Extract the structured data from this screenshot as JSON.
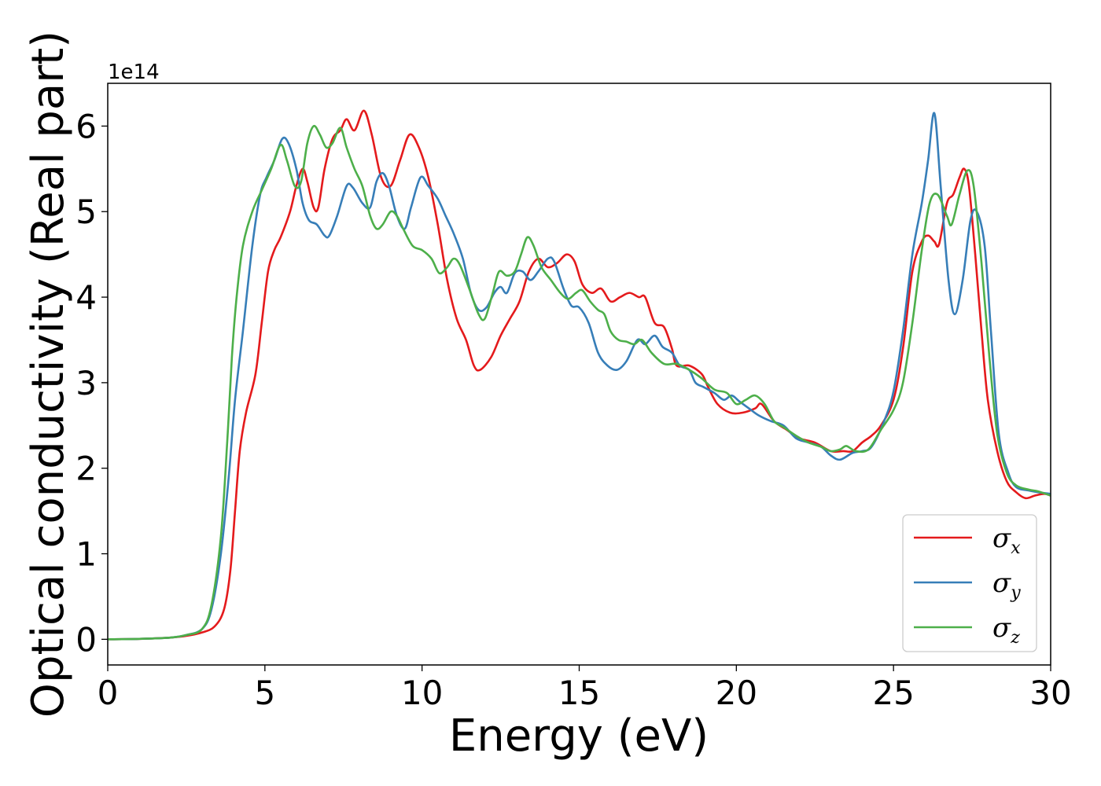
{
  "chart_data": {
    "type": "line",
    "xlabel": "Energy (eV)",
    "ylabel": "Optical conductivity (Real part)",
    "y_offset_label": "1e14",
    "y_scale_factor": 100000000000000.0,
    "xlim": [
      0,
      30
    ],
    "ylim": [
      -0.3,
      6.5
    ],
    "x_ticks": [
      0,
      5,
      10,
      15,
      20,
      25,
      30
    ],
    "y_ticks": [
      0,
      1,
      2,
      3,
      4,
      5,
      6
    ],
    "grid": false,
    "legend_position": "bottom-right",
    "series": [
      {
        "name": "σx",
        "symbol": "σ",
        "subscript": "x",
        "color": "#e41a1c",
        "points": [
          [
            0,
            0
          ],
          [
            1,
            0.005
          ],
          [
            2,
            0.02
          ],
          [
            2.5,
            0.04
          ],
          [
            3,
            0.08
          ],
          [
            3.4,
            0.15
          ],
          [
            3.7,
            0.35
          ],
          [
            3.9,
            0.8
          ],
          [
            4.05,
            1.5
          ],
          [
            4.2,
            2.2
          ],
          [
            4.4,
            2.65
          ],
          [
            4.7,
            3.1
          ],
          [
            4.9,
            3.7
          ],
          [
            5.1,
            4.3
          ],
          [
            5.3,
            4.55
          ],
          [
            5.5,
            4.7
          ],
          [
            5.8,
            5.0
          ],
          [
            6.0,
            5.3
          ],
          [
            6.2,
            5.5
          ],
          [
            6.35,
            5.35
          ],
          [
            6.55,
            5.05
          ],
          [
            6.7,
            5.05
          ],
          [
            6.9,
            5.5
          ],
          [
            7.15,
            5.85
          ],
          [
            7.4,
            5.95
          ],
          [
            7.6,
            6.08
          ],
          [
            7.85,
            5.95
          ],
          [
            8.15,
            6.18
          ],
          [
            8.4,
            5.9
          ],
          [
            8.7,
            5.4
          ],
          [
            9.0,
            5.3
          ],
          [
            9.3,
            5.6
          ],
          [
            9.6,
            5.9
          ],
          [
            9.9,
            5.75
          ],
          [
            10.2,
            5.4
          ],
          [
            10.5,
            4.85
          ],
          [
            10.8,
            4.2
          ],
          [
            11.1,
            3.75
          ],
          [
            11.4,
            3.5
          ],
          [
            11.65,
            3.2
          ],
          [
            11.85,
            3.15
          ],
          [
            12.2,
            3.3
          ],
          [
            12.5,
            3.55
          ],
          [
            12.8,
            3.75
          ],
          [
            13.1,
            3.95
          ],
          [
            13.4,
            4.3
          ],
          [
            13.7,
            4.45
          ],
          [
            14.0,
            4.35
          ],
          [
            14.3,
            4.4
          ],
          [
            14.6,
            4.5
          ],
          [
            14.85,
            4.42
          ],
          [
            15.1,
            4.15
          ],
          [
            15.4,
            4.05
          ],
          [
            15.7,
            4.1
          ],
          [
            16.0,
            3.95
          ],
          [
            16.3,
            4.0
          ],
          [
            16.6,
            4.05
          ],
          [
            16.9,
            4.0
          ],
          [
            17.1,
            4.0
          ],
          [
            17.4,
            3.7
          ],
          [
            17.7,
            3.65
          ],
          [
            17.95,
            3.4
          ],
          [
            18.1,
            3.2
          ],
          [
            18.5,
            3.2
          ],
          [
            18.9,
            3.1
          ],
          [
            19.1,
            2.95
          ],
          [
            19.4,
            2.75
          ],
          [
            19.8,
            2.65
          ],
          [
            20.2,
            2.65
          ],
          [
            20.6,
            2.7
          ],
          [
            20.8,
            2.75
          ],
          [
            21.2,
            2.55
          ],
          [
            21.6,
            2.45
          ],
          [
            22.0,
            2.35
          ],
          [
            22.5,
            2.3
          ],
          [
            23.0,
            2.2
          ],
          [
            23.4,
            2.2
          ],
          [
            23.7,
            2.2
          ],
          [
            24.0,
            2.3
          ],
          [
            24.3,
            2.38
          ],
          [
            24.6,
            2.5
          ],
          [
            25.0,
            2.8
          ],
          [
            25.3,
            3.4
          ],
          [
            25.6,
            4.3
          ],
          [
            25.9,
            4.65
          ],
          [
            26.1,
            4.72
          ],
          [
            26.3,
            4.65
          ],
          [
            26.45,
            4.62
          ],
          [
            26.7,
            5.1
          ],
          [
            26.9,
            5.2
          ],
          [
            27.1,
            5.4
          ],
          [
            27.25,
            5.5
          ],
          [
            27.4,
            5.3
          ],
          [
            27.6,
            4.5
          ],
          [
            27.8,
            3.6
          ],
          [
            28.0,
            2.8
          ],
          [
            28.3,
            2.2
          ],
          [
            28.6,
            1.85
          ],
          [
            28.9,
            1.72
          ],
          [
            29.2,
            1.65
          ],
          [
            29.5,
            1.68
          ],
          [
            29.8,
            1.7
          ],
          [
            30,
            1.68
          ]
        ]
      },
      {
        "name": "σy",
        "symbol": "σ",
        "subscript": "y",
        "color": "#377eb8",
        "points": [
          [
            0,
            0
          ],
          [
            1,
            0.005
          ],
          [
            2,
            0.02
          ],
          [
            2.5,
            0.05
          ],
          [
            3,
            0.12
          ],
          [
            3.3,
            0.35
          ],
          [
            3.6,
            1.0
          ],
          [
            3.85,
            1.9
          ],
          [
            4.05,
            2.8
          ],
          [
            4.3,
            3.6
          ],
          [
            4.6,
            4.6
          ],
          [
            4.85,
            5.2
          ],
          [
            5.05,
            5.4
          ],
          [
            5.3,
            5.6
          ],
          [
            5.55,
            5.85
          ],
          [
            5.75,
            5.8
          ],
          [
            6.0,
            5.5
          ],
          [
            6.2,
            5.1
          ],
          [
            6.4,
            4.9
          ],
          [
            6.65,
            4.85
          ],
          [
            6.9,
            4.72
          ],
          [
            7.05,
            4.72
          ],
          [
            7.3,
            4.95
          ],
          [
            7.6,
            5.3
          ],
          [
            7.8,
            5.28
          ],
          [
            8.1,
            5.1
          ],
          [
            8.35,
            5.05
          ],
          [
            8.55,
            5.35
          ],
          [
            8.75,
            5.45
          ],
          [
            8.95,
            5.3
          ],
          [
            9.2,
            4.95
          ],
          [
            9.45,
            4.8
          ],
          [
            9.65,
            5.05
          ],
          [
            9.95,
            5.4
          ],
          [
            10.2,
            5.3
          ],
          [
            10.5,
            5.15
          ],
          [
            10.75,
            4.95
          ],
          [
            11.0,
            4.75
          ],
          [
            11.3,
            4.45
          ],
          [
            11.55,
            4.05
          ],
          [
            11.8,
            3.85
          ],
          [
            12.05,
            3.88
          ],
          [
            12.3,
            4.05
          ],
          [
            12.5,
            4.12
          ],
          [
            12.7,
            4.05
          ],
          [
            12.95,
            4.28
          ],
          [
            13.2,
            4.3
          ],
          [
            13.45,
            4.2
          ],
          [
            13.7,
            4.3
          ],
          [
            14.0,
            4.45
          ],
          [
            14.2,
            4.42
          ],
          [
            14.5,
            4.1
          ],
          [
            14.75,
            3.9
          ],
          [
            15.0,
            3.88
          ],
          [
            15.3,
            3.7
          ],
          [
            15.6,
            3.35
          ],
          [
            15.9,
            3.2
          ],
          [
            16.2,
            3.15
          ],
          [
            16.5,
            3.25
          ],
          [
            16.85,
            3.5
          ],
          [
            17.1,
            3.45
          ],
          [
            17.4,
            3.55
          ],
          [
            17.65,
            3.42
          ],
          [
            17.95,
            3.35
          ],
          [
            18.2,
            3.2
          ],
          [
            18.5,
            3.15
          ],
          [
            18.7,
            3.0
          ],
          [
            18.95,
            2.95
          ],
          [
            19.3,
            2.88
          ],
          [
            19.6,
            2.8
          ],
          [
            19.85,
            2.85
          ],
          [
            20.1,
            2.78
          ],
          [
            20.4,
            2.7
          ],
          [
            20.7,
            2.62
          ],
          [
            21.1,
            2.55
          ],
          [
            21.5,
            2.5
          ],
          [
            21.9,
            2.35
          ],
          [
            22.3,
            2.3
          ],
          [
            22.7,
            2.25
          ],
          [
            23.0,
            2.15
          ],
          [
            23.3,
            2.1
          ],
          [
            23.7,
            2.18
          ],
          [
            24.0,
            2.2
          ],
          [
            24.3,
            2.25
          ],
          [
            24.7,
            2.55
          ],
          [
            25.0,
            2.9
          ],
          [
            25.3,
            3.6
          ],
          [
            25.6,
            4.5
          ],
          [
            25.9,
            5.1
          ],
          [
            26.1,
            5.6
          ],
          [
            26.3,
            6.15
          ],
          [
            26.5,
            5.3
          ],
          [
            26.75,
            4.2
          ],
          [
            26.95,
            3.8
          ],
          [
            27.2,
            4.2
          ],
          [
            27.45,
            4.9
          ],
          [
            27.65,
            5.0
          ],
          [
            27.9,
            4.6
          ],
          [
            28.1,
            3.6
          ],
          [
            28.35,
            2.4
          ],
          [
            28.65,
            1.95
          ],
          [
            28.9,
            1.78
          ],
          [
            29.3,
            1.74
          ],
          [
            29.6,
            1.72
          ],
          [
            30,
            1.7
          ]
        ]
      },
      {
        "name": "σz",
        "symbol": "σ",
        "subscript": "z",
        "color": "#4daf4a",
        "points": [
          [
            0,
            0
          ],
          [
            1,
            0.005
          ],
          [
            2,
            0.02
          ],
          [
            2.5,
            0.05
          ],
          [
            3,
            0.12
          ],
          [
            3.3,
            0.4
          ],
          [
            3.6,
            1.2
          ],
          [
            3.8,
            2.3
          ],
          [
            3.95,
            3.3
          ],
          [
            4.1,
            4.0
          ],
          [
            4.3,
            4.6
          ],
          [
            4.6,
            5.0
          ],
          [
            4.9,
            5.25
          ],
          [
            5.2,
            5.5
          ],
          [
            5.5,
            5.78
          ],
          [
            5.7,
            5.6
          ],
          [
            5.95,
            5.3
          ],
          [
            6.15,
            5.35
          ],
          [
            6.35,
            5.8
          ],
          [
            6.55,
            6.0
          ],
          [
            6.75,
            5.9
          ],
          [
            6.95,
            5.75
          ],
          [
            7.15,
            5.8
          ],
          [
            7.4,
            5.98
          ],
          [
            7.6,
            5.75
          ],
          [
            7.85,
            5.5
          ],
          [
            8.1,
            5.3
          ],
          [
            8.35,
            4.95
          ],
          [
            8.55,
            4.8
          ],
          [
            8.75,
            4.85
          ],
          [
            9.0,
            5.0
          ],
          [
            9.2,
            4.95
          ],
          [
            9.4,
            4.8
          ],
          [
            9.7,
            4.6
          ],
          [
            10.0,
            4.55
          ],
          [
            10.3,
            4.45
          ],
          [
            10.55,
            4.28
          ],
          [
            10.8,
            4.35
          ],
          [
            11.0,
            4.45
          ],
          [
            11.2,
            4.38
          ],
          [
            11.5,
            4.1
          ],
          [
            11.8,
            3.8
          ],
          [
            12.0,
            3.75
          ],
          [
            12.25,
            4.05
          ],
          [
            12.45,
            4.3
          ],
          [
            12.7,
            4.25
          ],
          [
            12.95,
            4.3
          ],
          [
            13.15,
            4.5
          ],
          [
            13.35,
            4.7
          ],
          [
            13.55,
            4.6
          ],
          [
            13.8,
            4.35
          ],
          [
            14.1,
            4.2
          ],
          [
            14.4,
            4.05
          ],
          [
            14.65,
            3.98
          ],
          [
            14.9,
            4.05
          ],
          [
            15.1,
            4.08
          ],
          [
            15.35,
            3.95
          ],
          [
            15.6,
            3.85
          ],
          [
            15.8,
            3.8
          ],
          [
            16.0,
            3.6
          ],
          [
            16.25,
            3.5
          ],
          [
            16.5,
            3.48
          ],
          [
            16.75,
            3.45
          ],
          [
            17.0,
            3.5
          ],
          [
            17.3,
            3.35
          ],
          [
            17.7,
            3.22
          ],
          [
            18.1,
            3.22
          ],
          [
            18.5,
            3.15
          ],
          [
            18.9,
            3.05
          ],
          [
            19.3,
            2.92
          ],
          [
            19.7,
            2.88
          ],
          [
            20.0,
            2.75
          ],
          [
            20.3,
            2.8
          ],
          [
            20.6,
            2.85
          ],
          [
            20.9,
            2.75
          ],
          [
            21.2,
            2.55
          ],
          [
            21.5,
            2.48
          ],
          [
            21.9,
            2.38
          ],
          [
            22.3,
            2.3
          ],
          [
            22.7,
            2.25
          ],
          [
            23.0,
            2.2
          ],
          [
            23.3,
            2.22
          ],
          [
            23.5,
            2.26
          ],
          [
            23.8,
            2.2
          ],
          [
            24.2,
            2.22
          ],
          [
            24.6,
            2.45
          ],
          [
            25.0,
            2.68
          ],
          [
            25.3,
            3.0
          ],
          [
            25.6,
            3.7
          ],
          [
            25.9,
            4.55
          ],
          [
            26.15,
            5.1
          ],
          [
            26.4,
            5.2
          ],
          [
            26.7,
            4.95
          ],
          [
            26.85,
            4.85
          ],
          [
            27.1,
            5.2
          ],
          [
            27.35,
            5.48
          ],
          [
            27.55,
            5.3
          ],
          [
            27.8,
            4.4
          ],
          [
            28.05,
            3.3
          ],
          [
            28.3,
            2.4
          ],
          [
            28.6,
            1.95
          ],
          [
            28.9,
            1.8
          ],
          [
            29.3,
            1.75
          ],
          [
            29.6,
            1.73
          ],
          [
            30,
            1.68
          ]
        ]
      }
    ]
  }
}
